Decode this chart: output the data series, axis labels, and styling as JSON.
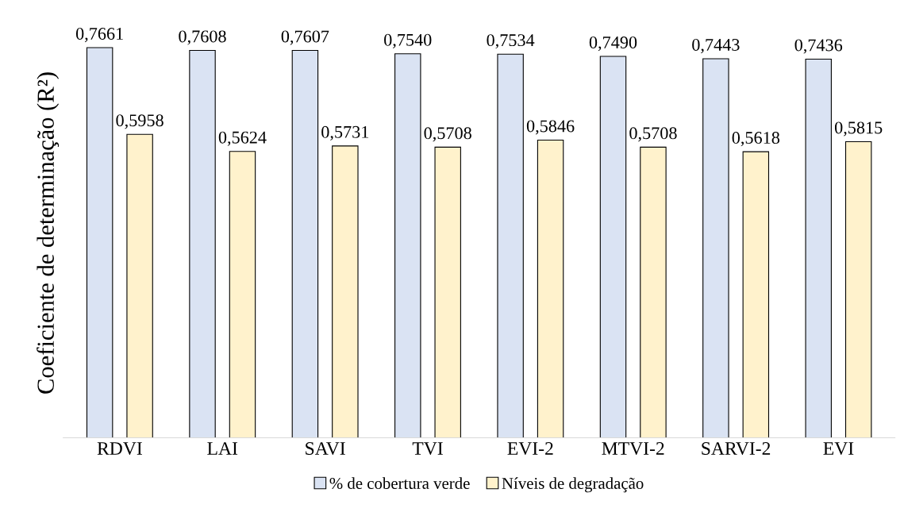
{
  "chart_data": {
    "type": "bar",
    "ylabel": "Coeficiente de determinação (R²)",
    "categories": [
      "RDVI",
      "LAI",
      "SAVI",
      "TVI",
      "EVI-2",
      "MTVI-2",
      "SARVI-2",
      "EVI"
    ],
    "series": [
      {
        "name": "% de cobertura verde",
        "color": "#dae3f3",
        "values": [
          0.7661,
          0.7608,
          0.7607,
          0.754,
          0.7534,
          0.749,
          0.7443,
          0.7436
        ],
        "value_labels": [
          "0,7661",
          "0,7608",
          "0,7607",
          "0,7540",
          "0,7534",
          "0,7490",
          "0,7443",
          "0,7436"
        ]
      },
      {
        "name": "Níveis de degradação",
        "color": "#fff2cc",
        "values": [
          0.5958,
          0.5624,
          0.5731,
          0.5708,
          0.5846,
          0.5708,
          0.5618,
          0.5815
        ],
        "value_labels": [
          "0,5958",
          "0,5624",
          "0,5731",
          "0,5708",
          "0,5846",
          "0,5708",
          "0,5618",
          "0,5815"
        ]
      }
    ],
    "tick_labels": "x",
    "grid": false,
    "legend": "bottom"
  }
}
